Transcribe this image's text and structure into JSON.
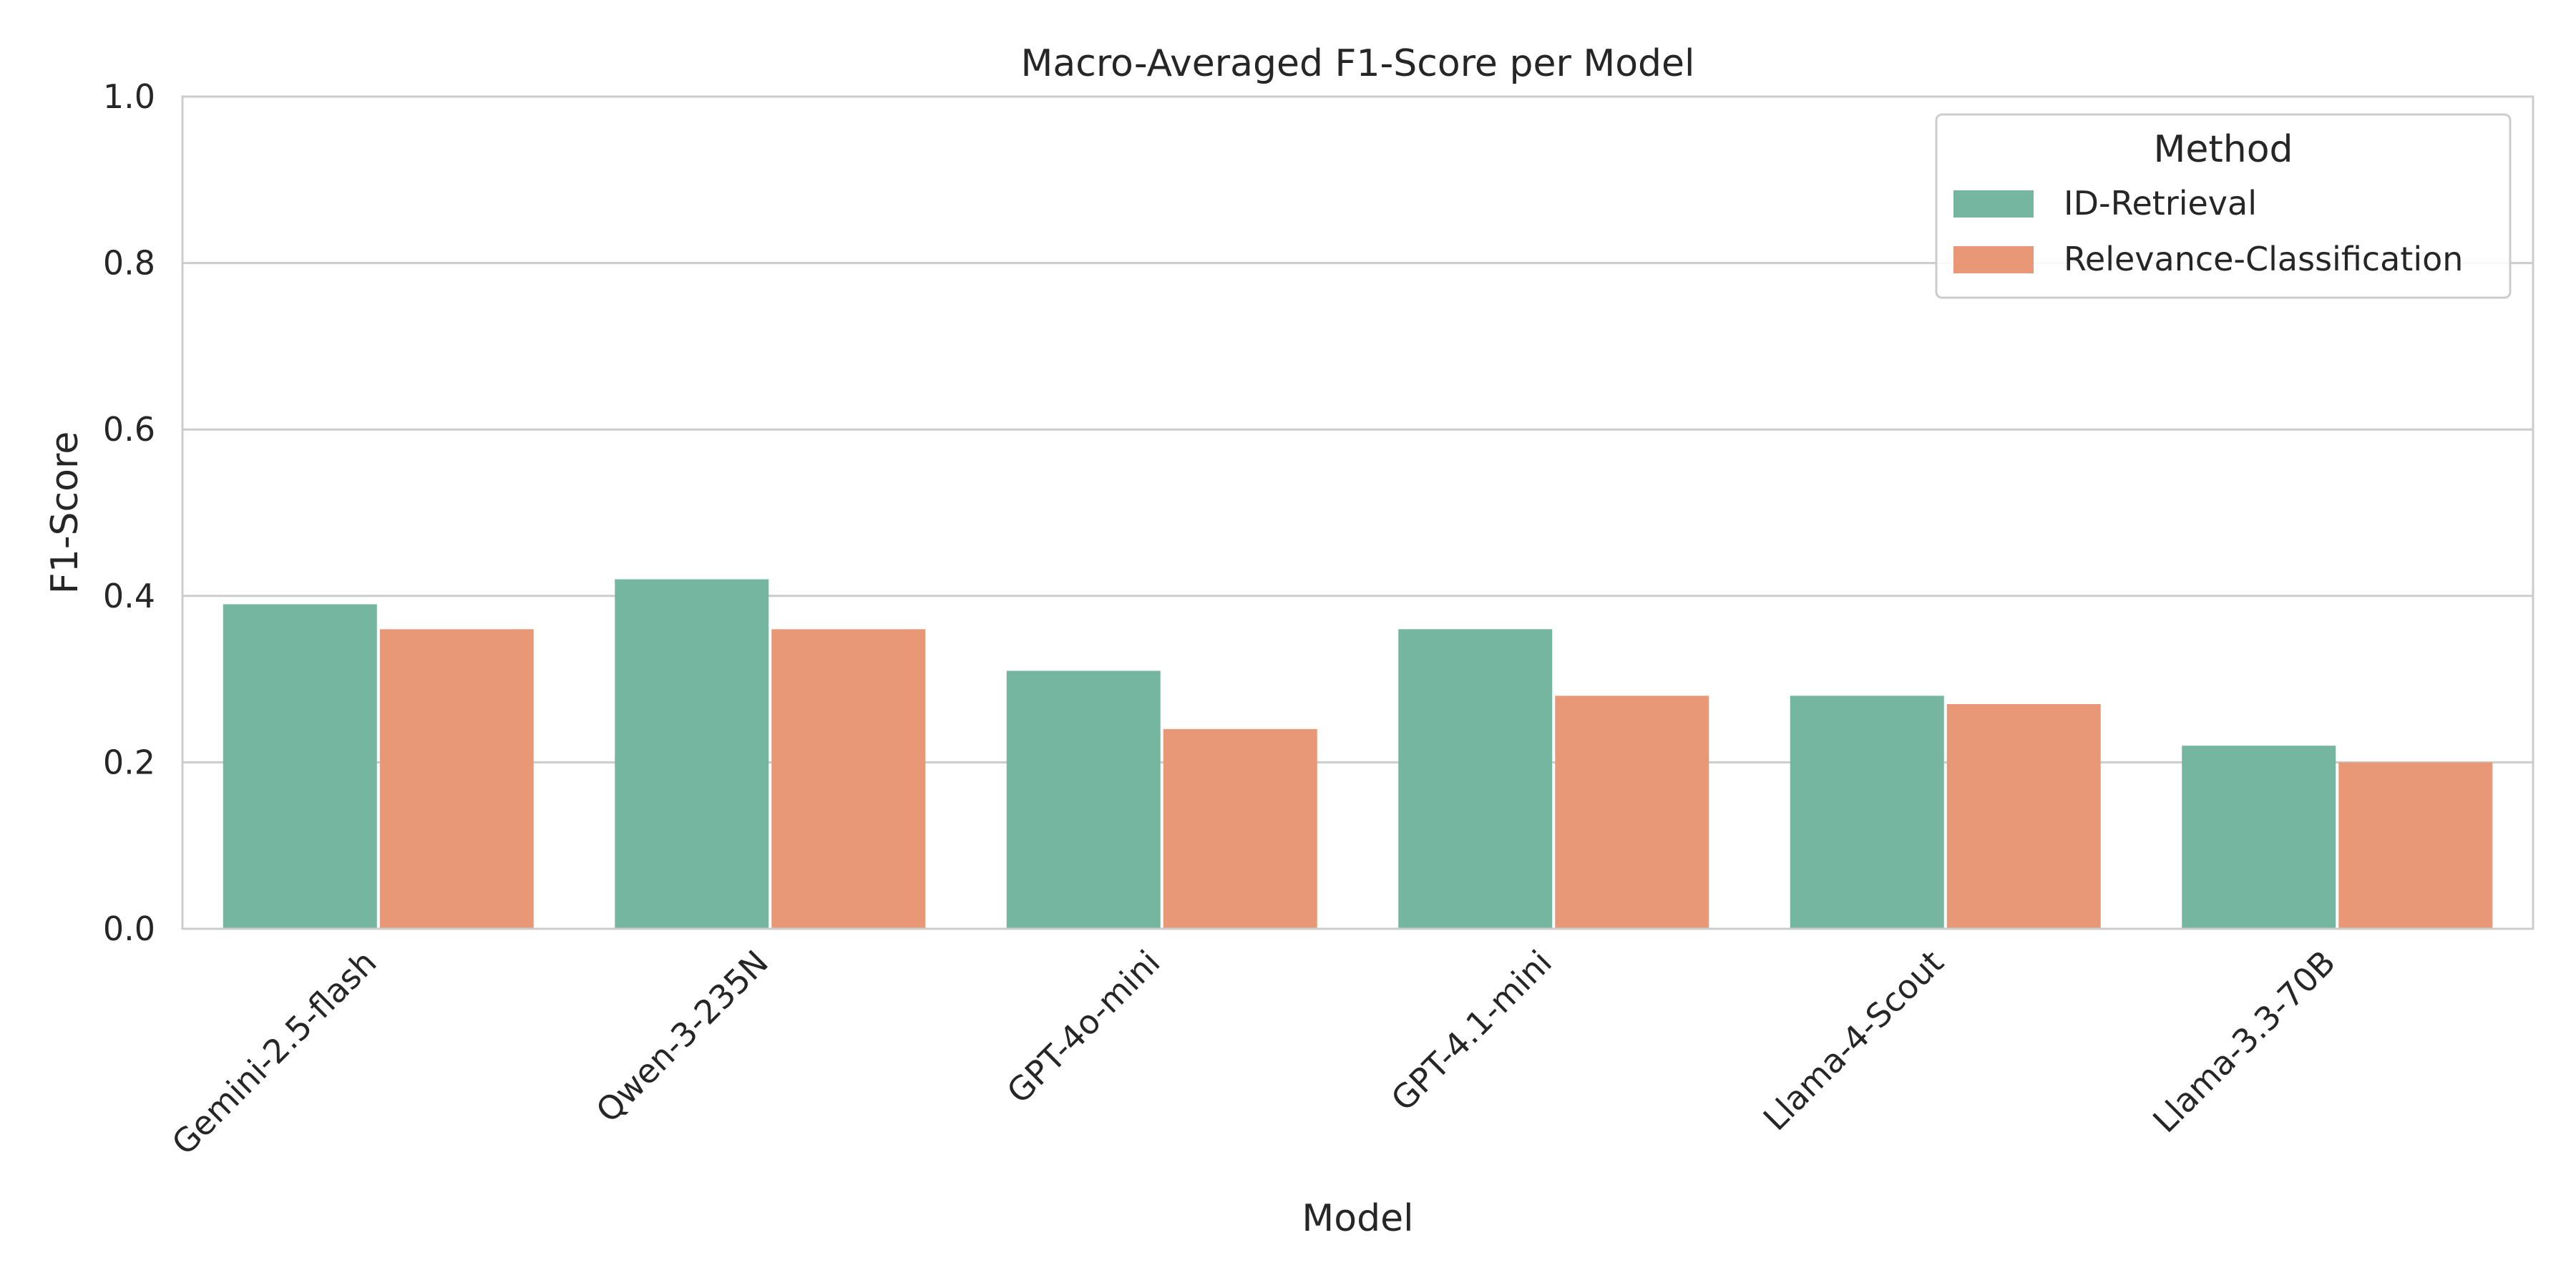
{
  "chart_data": {
    "type": "bar",
    "title": "Macro-Averaged F1-Score per Model",
    "xlabel": "Model",
    "ylabel": "F1-Score",
    "ylim": [
      0,
      1.0
    ],
    "yticks": [
      "0.0",
      "0.2",
      "0.4",
      "0.6",
      "0.8",
      "1.0"
    ],
    "grid": "horizontal",
    "categories": [
      "Gemini-2.5-flash",
      "Qwen-3-235N",
      "GPT-4o-mini",
      "GPT-4.1-mini",
      "Llama-4-Scout",
      "Llama-3.3-70B"
    ],
    "legend": {
      "title": "Method",
      "placement": "top-right"
    },
    "series": [
      {
        "name": "ID-Retrieval",
        "color": "#74b6a0",
        "values": [
          0.39,
          0.42,
          0.31,
          0.36,
          0.28,
          0.22
        ]
      },
      {
        "name": "Relevance-Classification",
        "color": "#e99877",
        "values": [
          0.36,
          0.36,
          0.24,
          0.28,
          0.27,
          0.2
        ]
      }
    ]
  }
}
